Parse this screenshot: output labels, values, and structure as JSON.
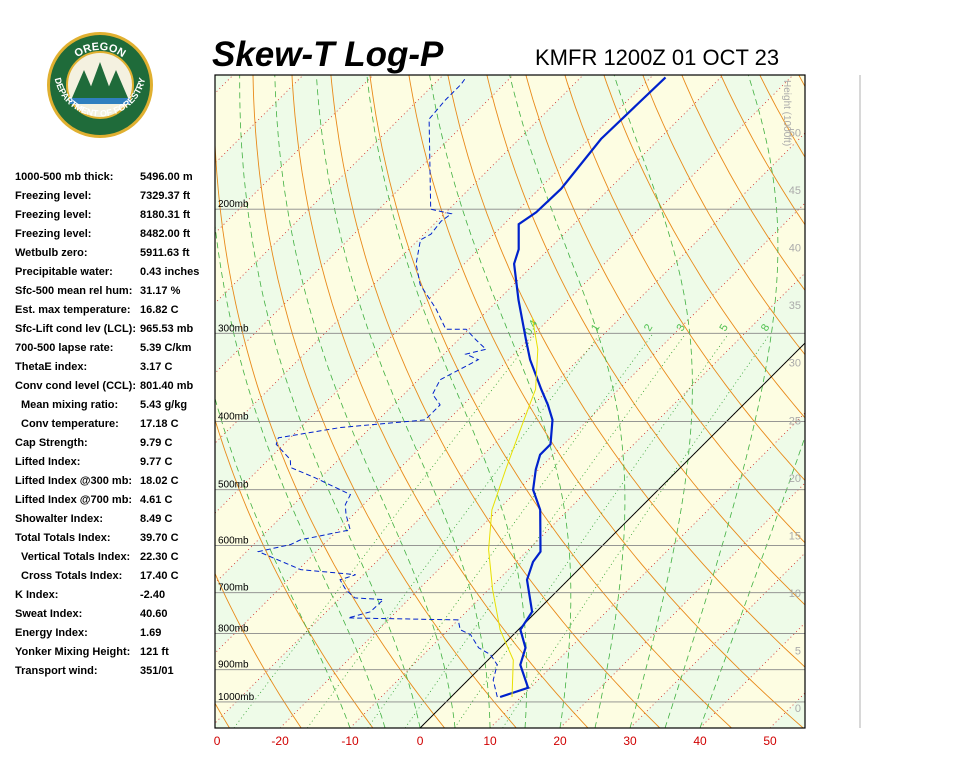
{
  "logo": {
    "top": "OREGON",
    "bottom": "DEPARTMENT OF FORESTRY"
  },
  "indices": {
    "rows": [
      [
        "1000-500 mb thick:",
        "5496.00 m"
      ],
      [
        "Freezing level:",
        "7329.37 ft"
      ],
      [
        "Freezing level:",
        "8180.31 ft"
      ],
      [
        "Freezing level:",
        "8482.00 ft"
      ],
      [
        "Wetbulb zero:",
        "5911.63 ft"
      ],
      [
        "Precipitable water:",
        "0.43 inches"
      ],
      [
        "Sfc-500 mean rel hum:",
        "31.17 %"
      ],
      [
        "Est. max temperature:",
        "16.82 C"
      ],
      [
        "Sfc-Lift cond lev (LCL):",
        "965.53 mb"
      ],
      [
        "700-500 lapse rate:",
        "5.39 C/km"
      ],
      [
        "ThetaE index:",
        "3.17 C"
      ],
      [
        "Conv cond level (CCL):",
        "801.40 mb"
      ],
      [
        "Mean mixing ratio:",
        "5.43 g/kg"
      ],
      [
        "Conv temperature:",
        "17.18 C"
      ],
      [
        "Cap Strength:",
        "9.79 C"
      ],
      [
        "Lifted Index:",
        "9.77 C"
      ],
      [
        "Lifted Index @300 mb:",
        "18.02 C"
      ],
      [
        "Lifted Index @700 mb:",
        "4.61 C"
      ],
      [
        "Showalter Index:",
        "8.49 C"
      ],
      [
        "Total Totals Index:",
        "39.70 C"
      ],
      [
        "Vertical Totals Index:",
        "22.30 C"
      ],
      [
        "Cross Totals Index:",
        "17.40 C"
      ],
      [
        "K Index:",
        "-2.40"
      ],
      [
        "Sweat Index:",
        "40.60"
      ],
      [
        "Energy Index:",
        "1.69"
      ],
      [
        "Yonker Mixing Height:",
        "121 ft"
      ],
      [
        "Transport wind:",
        "351/01"
      ]
    ]
  },
  "chart_data": {
    "type": "skewt",
    "title": "Skew-T Log-P",
    "subtitle": "KMFR 1200Z 01 OCT 23",
    "xlim": [
      -29.3,
      55
    ],
    "xticks": [
      {
        "value": -29,
        "label": "0"
      },
      -20,
      -10,
      0,
      10,
      20,
      30,
      40,
      50
    ],
    "plim": [
      1089,
      129
    ],
    "pticks": [
      {
        "value": 200,
        "label": "200mb"
      },
      {
        "value": 300,
        "label": "300mb"
      },
      {
        "value": 400,
        "label": "400mb"
      },
      {
        "value": 500,
        "label": "500mb"
      },
      {
        "value": 600,
        "label": "600mb"
      },
      {
        "value": 700,
        "label": "700mb"
      },
      {
        "value": 800,
        "label": "800mb"
      },
      {
        "value": 900,
        "label": "900mb"
      },
      {
        "value": 1000,
        "label": "1000mb"
      }
    ],
    "height_label": "Height (1000ft)",
    "hlim": [
      -1.74,
      55
    ],
    "height_ticks": [
      0,
      5,
      10,
      15,
      20,
      25,
      30,
      35,
      40,
      45,
      50
    ],
    "mixing_ratio_labels": [
      0.4,
      1,
      2,
      3,
      5,
      8
    ],
    "series": [
      {
        "color": "#0022cc",
        "style": "solid",
        "pressure": [
          984,
          955,
          886,
          838,
          790,
          745,
          671,
          633,
          612,
          534,
          500,
          468,
          446,
          431,
          398,
          379,
          360,
          327,
          306,
          269,
          239,
          228,
          210,
          202,
          187,
          159,
          130
        ],
        "values": [
          7.0,
          9.7,
          5.3,
          3.6,
          0.3,
          -0.6,
          -5.9,
          -7.6,
          -8.0,
          -14.0,
          -17.9,
          -20.4,
          -21.9,
          -21.9,
          -25.1,
          -27.9,
          -31.1,
          -36.9,
          -40.4,
          -47.1,
          -52.9,
          -54.3,
          -57.9,
          -57.1,
          -56.9,
          -58.3,
          -57.9
        ]
      },
      {
        "color": "#0022cc",
        "style": "dashed",
        "pressure": [
          984,
          931,
          886,
          857,
          838,
          803,
          790,
          765,
          760,
          745,
          716,
          712,
          693,
          671,
          660,
          649,
          612,
          598,
          589,
          570,
          542,
          525,
          508,
          481,
          465,
          453,
          431,
          422,
          408,
          398,
          379,
          366,
          349,
          327,
          321,
          316,
          306,
          296,
          296,
          277,
          269,
          256,
          239,
          221,
          217,
          208,
          203,
          200,
          176,
          149,
          140,
          133,
          130
        ],
        "values": [
          6.6,
          3.6,
          2.0,
          -0.4,
          -3.1,
          -6.1,
          -8.3,
          -10.0,
          -26.0,
          -23.7,
          -23.6,
          -27.9,
          -30.4,
          -32.6,
          -31.1,
          -39.7,
          -48.3,
          -44.7,
          -44.0,
          -38.3,
          -41.1,
          -42.6,
          -43.3,
          -50.7,
          -55.7,
          -56.9,
          -61.1,
          -61.7,
          -54.3,
          -43.3,
          -43.3,
          -45.9,
          -46.9,
          -44.3,
          -46.9,
          -44.7,
          -47.6,
          -50.4,
          -53.3,
          -57.6,
          -59.7,
          -63.3,
          -66.9,
          -69.7,
          -69.0,
          -69.4,
          -69.0,
          -72.6,
          -78.3,
          -85.7,
          -86.1,
          -86.1,
          -86.4
        ]
      },
      {
        "color": "#e8e000",
        "style": "thin",
        "pressure": [
          984,
          872,
          790,
          693,
          608,
          534,
          468,
          411,
          360,
          316,
          285
        ],
        "values": [
          8.7,
          3.6,
          -2.6,
          -9.4,
          -15.7,
          -20.9,
          -24.7,
          -28.3,
          -31.9,
          -37.3,
          -42.6
        ]
      }
    ]
  }
}
